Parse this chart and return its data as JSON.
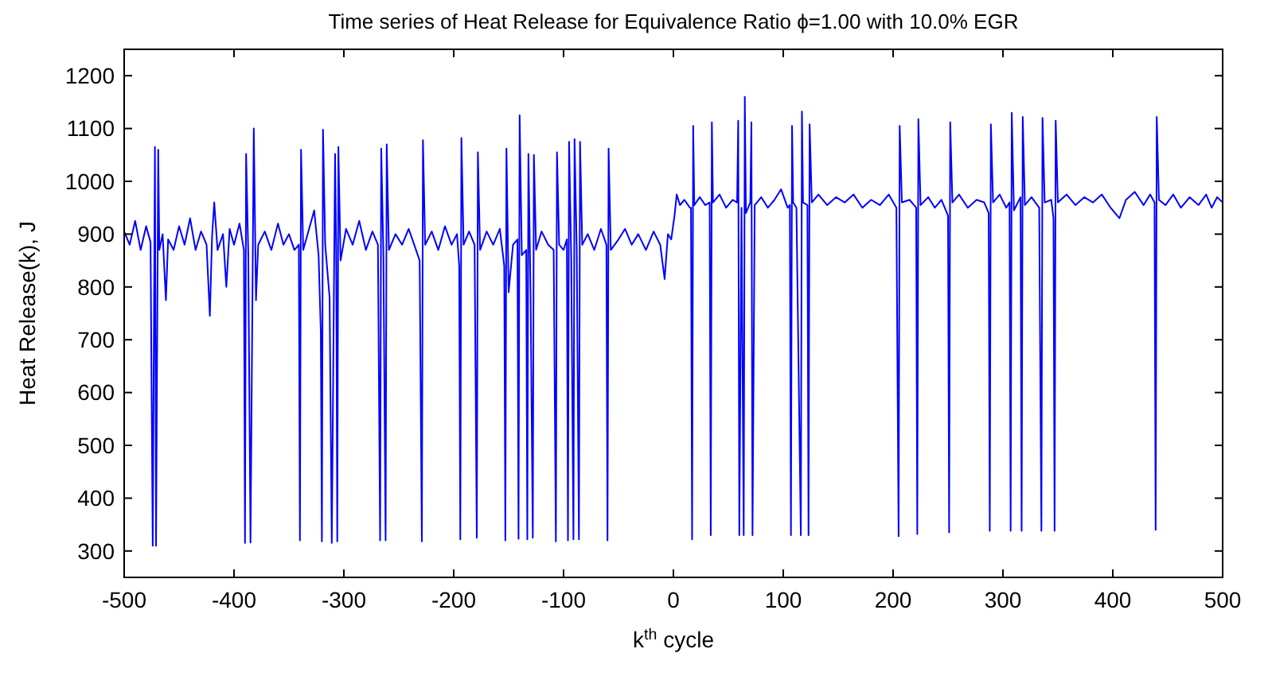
{
  "chart_data": {
    "type": "line",
    "title": "Time series of Heat Release for Equivalence Ratio ϕ=1.00 with 10.0% EGR",
    "xlabel": "k$^{th}$ cycle",
    "ylabel": "Heat Release(k), J",
    "x": [
      -500,
      -495,
      -490,
      -485,
      -480,
      -476,
      -474,
      -472,
      -471,
      -469,
      -468,
      -465,
      -462,
      -460,
      -455,
      -450,
      -445,
      -440,
      -435,
      -430,
      -425,
      -422,
      -420,
      -418,
      -415,
      -410,
      -407,
      -404,
      -400,
      -395,
      -391,
      -390,
      -389,
      -387,
      -385,
      -382,
      -380,
      -378,
      -372,
      -366,
      -360,
      -355,
      -350,
      -345,
      -341,
      -340,
      -339,
      -337,
      -333,
      -327,
      -323,
      -321,
      -320,
      -319,
      -317,
      -313,
      -311,
      -308,
      -307,
      -306,
      -305,
      -303,
      -298,
      -292,
      -286,
      -280,
      -274,
      -269,
      -267,
      -266,
      -264,
      -262,
      -261,
      -259,
      -253,
      -247,
      -241,
      -236,
      -231,
      -229,
      -228,
      -226,
      -220,
      -214,
      -208,
      -202,
      -197,
      -195,
      -194,
      -193,
      -191,
      -186,
      -181,
      -179,
      -178,
      -176,
      -170,
      -164,
      -158,
      -154,
      -153,
      -152,
      -150,
      -146,
      -142,
      -141,
      -140,
      -138,
      -134,
      -133,
      -132,
      -130,
      -128,
      -127,
      -125,
      -120,
      -114,
      -109,
      -107,
      -106,
      -104,
      -100,
      -97,
      -96,
      -95,
      -93,
      -91,
      -90,
      -88,
      -86,
      -85,
      -83,
      -78,
      -72,
      -66,
      -61,
      -60,
      -59,
      -57,
      -50,
      -44,
      -38,
      -32,
      -25,
      -18,
      -12,
      -8,
      -5,
      -2,
      1,
      3,
      6,
      10,
      15,
      16,
      17,
      18,
      19,
      24,
      29,
      33,
      34,
      35,
      36,
      42,
      48,
      54,
      58,
      59,
      60,
      62,
      64,
      65,
      66,
      70,
      71,
      72,
      74,
      80,
      86,
      92,
      98,
      104,
      106,
      107,
      108,
      109,
      112,
      116,
      117,
      118,
      122,
      123,
      124,
      126,
      132,
      140,
      148,
      156,
      164,
      172,
      180,
      188,
      196,
      203,
      205,
      206,
      208,
      215,
      221,
      222,
      223,
      225,
      232,
      238,
      244,
      250,
      251,
      252,
      254,
      260,
      268,
      276,
      283,
      287,
      288,
      289,
      291,
      297,
      303,
      306,
      307,
      308,
      310,
      316,
      317,
      318,
      320,
      326,
      333,
      335,
      336,
      338,
      344,
      346,
      347,
      348,
      350,
      358,
      366,
      374,
      382,
      390,
      398,
      406,
      412,
      420,
      428,
      434,
      438,
      439,
      440,
      442,
      448,
      455,
      462,
      470,
      478,
      485,
      490,
      495,
      500
    ],
    "series": [
      {
        "color": "#0000ff",
        "values": [
          905,
          880,
          925,
          870,
          915,
          885,
          310,
          1065,
          310,
          1060,
          870,
          900,
          775,
          890,
          870,
          915,
          880,
          930,
          870,
          905,
          880,
          745,
          895,
          960,
          870,
          900,
          800,
          910,
          880,
          920,
          870,
          315,
          1052,
          860,
          316,
          1100,
          775,
          880,
          905,
          870,
          920,
          880,
          900,
          870,
          880,
          320,
          1060,
          870,
          900,
          945,
          860,
          716,
          318,
          1098,
          880,
          780,
          315,
          1052,
          870,
          318,
          1065,
          850,
          910,
          880,
          925,
          870,
          905,
          880,
          320,
          1062,
          860,
          320,
          1070,
          870,
          900,
          880,
          910,
          880,
          850,
          318,
          1078,
          880,
          905,
          870,
          915,
          880,
          900,
          840,
          322,
          1082,
          880,
          905,
          880,
          325,
          1055,
          870,
          905,
          880,
          910,
          840,
          320,
          1062,
          790,
          880,
          890,
          323,
          1125,
          860,
          870,
          322,
          1052,
          780,
          325,
          1050,
          870,
          905,
          880,
          870,
          318,
          1055,
          880,
          870,
          890,
          320,
          1075,
          850,
          322,
          1080,
          870,
          322,
          1075,
          880,
          900,
          870,
          910,
          880,
          320,
          1062,
          870,
          890,
          910,
          880,
          900,
          870,
          905,
          880,
          815,
          900,
          890,
          935,
          975,
          955,
          965,
          950,
          950,
          322,
          1105,
          955,
          970,
          955,
          960,
          330,
          1112,
          960,
          975,
          950,
          965,
          960,
          1115,
          330,
          950,
          330,
          1160,
          940,
          960,
          1112,
          330,
          955,
          970,
          950,
          965,
          985,
          950,
          955,
          330,
          1105,
          960,
          950,
          330,
          1132,
          960,
          955,
          330,
          1108,
          960,
          975,
          955,
          970,
          960,
          975,
          950,
          965,
          955,
          975,
          950,
          328,
          1105,
          960,
          965,
          950,
          332,
          1118,
          955,
          970,
          950,
          965,
          935,
          335,
          1112,
          960,
          975,
          950,
          965,
          960,
          940,
          338,
          1108,
          960,
          975,
          950,
          960,
          338,
          1130,
          945,
          970,
          338,
          1122,
          955,
          970,
          950,
          338,
          1120,
          960,
          965,
          930,
          338,
          1115,
          960,
          975,
          955,
          970,
          960,
          975,
          950,
          930,
          965,
          980,
          955,
          975,
          960,
          340,
          1122,
          965,
          955,
          975,
          950,
          970,
          955,
          975,
          950,
          970,
          960
        ]
      }
    ],
    "xlim": [
      -500,
      500
    ],
    "xticks": [
      -500,
      -400,
      -300,
      -200,
      -100,
      0,
      100,
      200,
      300,
      400,
      500
    ],
    "ylim": [
      250,
      1250
    ],
    "yticks": [
      300,
      400,
      500,
      600,
      700,
      800,
      900,
      1000,
      1100,
      1200
    ],
    "grid": false,
    "marker": "none",
    "line_style": "solid"
  }
}
